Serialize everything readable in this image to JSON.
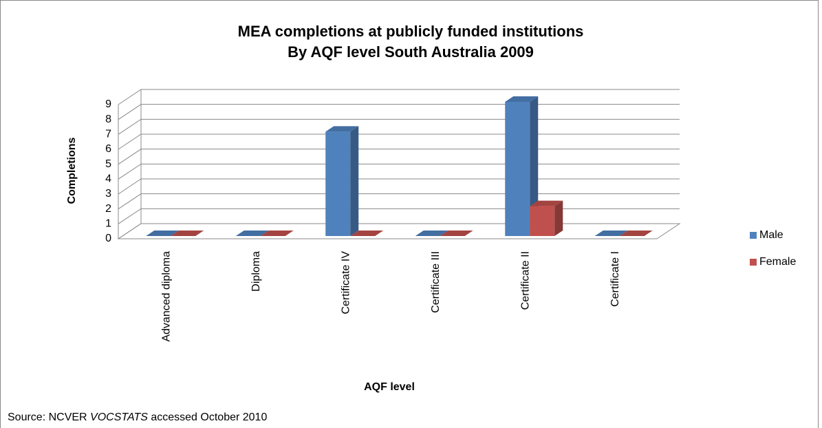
{
  "chart_data": {
    "type": "bar3d",
    "title_lines": [
      "MEA completions at publicly funded institutions",
      "By AQF level South Australia 2009"
    ],
    "y_label": "Completions",
    "x_label": "AQF level",
    "categories": [
      "Advanced diploma",
      "Diploma",
      "Certificate IV",
      "Certificate III",
      "Certificate II",
      "Certificate I"
    ],
    "series": [
      {
        "name": "Male",
        "color": "#4f81bd",
        "values": [
          0,
          0,
          7,
          0,
          9,
          0
        ]
      },
      {
        "name": "Female",
        "color": "#c0504d",
        "values": [
          0,
          0,
          0,
          0,
          2,
          0
        ]
      }
    ],
    "ylim": [
      0,
      9
    ],
    "yticks": [
      0,
      1,
      2,
      3,
      4,
      5,
      6,
      7,
      8,
      9
    ],
    "grid": true,
    "legend": "right"
  },
  "source": {
    "prefix": "Source: NCVER",
    "italic": "VOCSTATS",
    "suffix": "accessed October 2010"
  }
}
